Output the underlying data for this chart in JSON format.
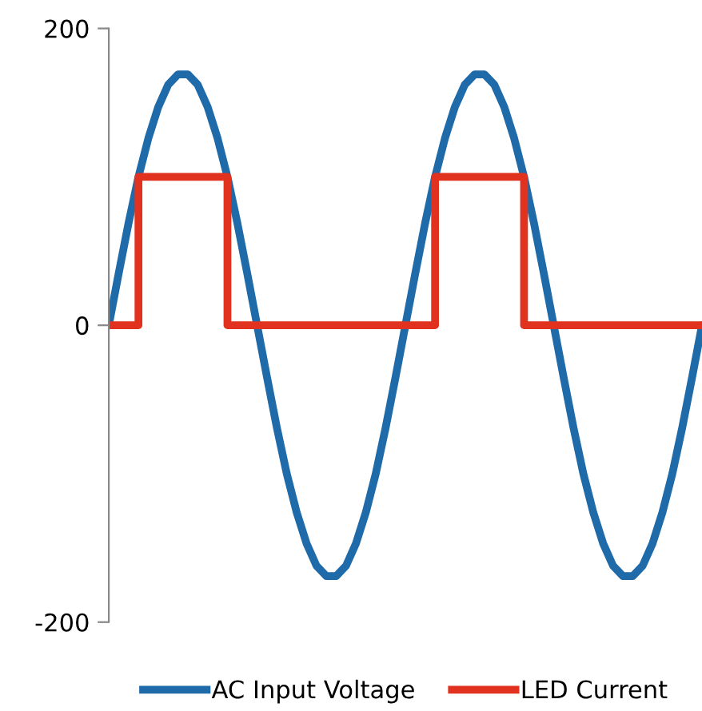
{
  "chart_data": {
    "type": "line",
    "categories": [
      null,
      null,
      null,
      null,
      null,
      null,
      null,
      null,
      null,
      null,
      null,
      null,
      null,
      null,
      null,
      null,
      null,
      null,
      null,
      null,
      null,
      null,
      null,
      null,
      null,
      null,
      null,
      null,
      null,
      null,
      null,
      null,
      null,
      null,
      null,
      null,
      null,
      null,
      null,
      null,
      null,
      null,
      null,
      null,
      null,
      null,
      null,
      null,
      null,
      null,
      null,
      null,
      null,
      null,
      null,
      null,
      null,
      null,
      null,
      null,
      null
    ],
    "series": [
      {
        "name": "AC Input Voltage",
        "color": "#1f6aa8",
        "values": [
          0,
          35,
          69,
          100,
          126,
          147,
          162,
          169,
          169,
          162,
          147,
          126,
          100,
          69,
          35,
          0,
          -35,
          -69,
          -100,
          -126,
          -147,
          -162,
          -169,
          -169,
          -162,
          -147,
          -126,
          -100,
          -69,
          -35,
          0,
          35,
          69,
          100,
          126,
          147,
          162,
          169,
          169,
          162,
          147,
          126,
          100,
          69,
          35,
          0,
          -35,
          -69,
          -100,
          -126,
          -147,
          -162,
          -169,
          -169,
          -162,
          -147,
          -126,
          -100,
          -69,
          -35,
          0
        ]
      },
      {
        "name": "LED Current",
        "type": "step",
        "color": "#e0321e",
        "values": [
          0,
          0,
          0,
          100,
          100,
          100,
          100,
          100,
          100,
          100,
          100,
          100,
          0,
          0,
          0,
          0,
          0,
          0,
          0,
          0,
          0,
          0,
          0,
          0,
          0,
          0,
          0,
          0,
          0,
          0,
          0,
          0,
          0,
          100,
          100,
          100,
          100,
          100,
          100,
          100,
          100,
          100,
          0,
          0,
          0,
          0,
          0,
          0,
          0,
          0,
          0,
          0,
          0,
          0,
          0,
          0,
          0,
          0,
          0,
          0,
          0
        ]
      }
    ],
    "ylim": [
      -200,
      200
    ],
    "yticks": [
      -200,
      0,
      200
    ],
    "legend": "bottom",
    "grid": false,
    "marker": "none"
  }
}
